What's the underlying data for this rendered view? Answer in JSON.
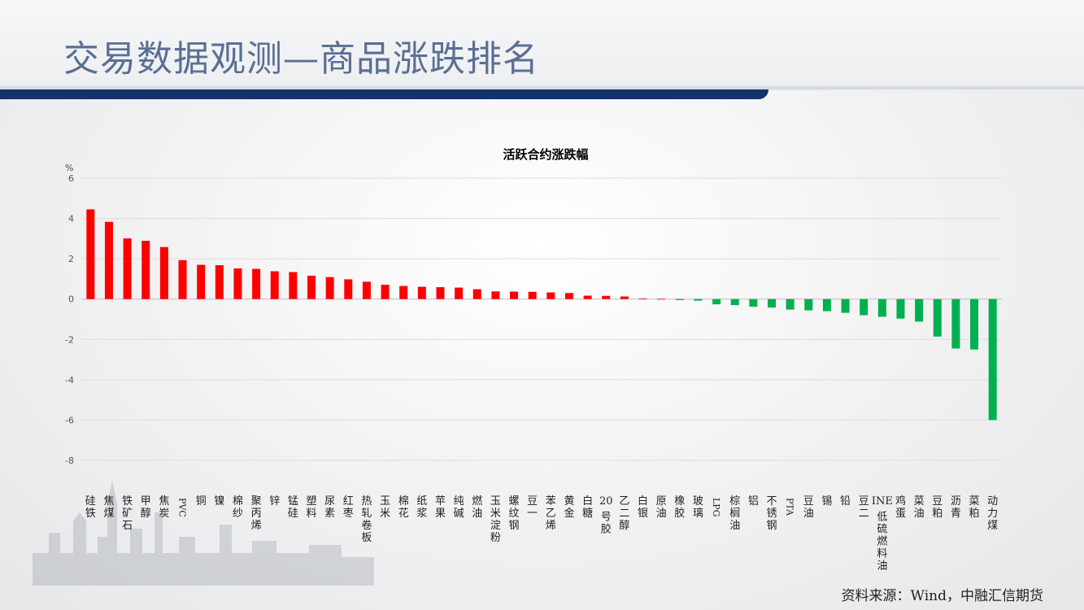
{
  "page": {
    "title": "交易数据观测—商品涨跌排名",
    "source": "资料来源：Wind，中融汇信期货"
  },
  "colors": {
    "up": "#ff0000",
    "down": "#00b050",
    "title_bar": "#13336b",
    "title_text": "#5b6f93"
  },
  "chart_data": {
    "type": "bar",
    "title": "活跃合约涨跌幅",
    "ylabel": "%",
    "ylim": [
      -8,
      6
    ],
    "yticks": [
      6,
      4,
      2,
      0,
      -2,
      -4,
      -6,
      -8
    ],
    "grid": true,
    "categories": [
      "硅铁",
      "焦煤",
      "铁矿石",
      "甲醇",
      "焦炭",
      "PVC",
      "铜",
      "镍",
      "棉纱",
      "聚丙烯",
      "锌",
      "锰硅",
      "塑料",
      "尿素",
      "红枣",
      "热轧卷板",
      "玉米",
      "棉花",
      "纸浆",
      "苹果",
      "纯碱",
      "燃油",
      "玉米淀粉",
      "螺纹钢",
      "豆一",
      "苯乙烯",
      "黄金",
      "白糖",
      "20号胶",
      "乙二醇",
      "白银",
      "原油",
      "橡胶",
      "玻璃",
      "LPG",
      "棕榈油",
      "铝",
      "不锈钢",
      "PTA",
      "豆油",
      "锡",
      "铅",
      "豆二",
      "INE低硫燃料油",
      "鸡蛋",
      "菜油",
      "豆粕",
      "沥青",
      "菜粕",
      "动力煤"
    ],
    "values": [
      4.45,
      3.83,
      3.01,
      2.89,
      2.58,
      1.93,
      1.7,
      1.68,
      1.52,
      1.5,
      1.38,
      1.34,
      1.16,
      1.09,
      0.98,
      0.86,
      0.71,
      0.65,
      0.61,
      0.59,
      0.57,
      0.49,
      0.38,
      0.37,
      0.36,
      0.33,
      0.3,
      0.17,
      0.16,
      0.13,
      0.03,
      0.01,
      -0.05,
      -0.08,
      -0.26,
      -0.3,
      -0.38,
      -0.42,
      -0.52,
      -0.56,
      -0.6,
      -0.68,
      -0.8,
      -0.88,
      -0.97,
      -1.12,
      -1.86,
      -2.45,
      -2.5,
      -6.0
    ]
  }
}
